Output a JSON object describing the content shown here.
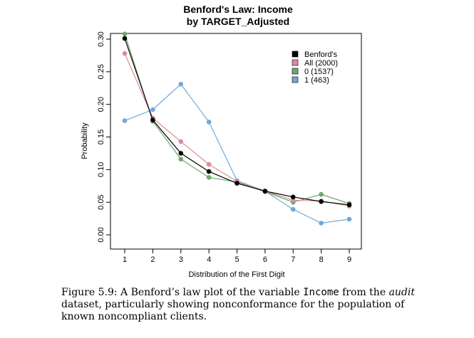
{
  "chart_data": {
    "type": "line",
    "title_line1": "Benford's Law: Income",
    "title_line2": "by TARGET_Adjusted",
    "xlabel": "Distribution of the First Digit",
    "ylabel": "Probability",
    "x": [
      1,
      2,
      3,
      4,
      5,
      6,
      7,
      8,
      9
    ],
    "xlim": [
      1,
      9
    ],
    "ylim": [
      0,
      0.3
    ],
    "yticks": [
      "0.00",
      "0.05",
      "0.10",
      "0.15",
      "0.20",
      "0.25",
      "0.30"
    ],
    "xticks": [
      "1",
      "2",
      "3",
      "4",
      "5",
      "6",
      "7",
      "8",
      "9"
    ],
    "legend_position": "top-right",
    "series": [
      {
        "name": "Benford's",
        "color": "#000000",
        "values": [
          0.301,
          0.176,
          0.125,
          0.097,
          0.079,
          0.067,
          0.058,
          0.051,
          0.046
        ]
      },
      {
        "name": "All (2000)",
        "color": "#d98c96",
        "values": [
          0.278,
          0.179,
          0.143,
          0.108,
          0.082,
          0.067,
          0.053,
          0.052,
          0.044
        ]
      },
      {
        "name": "0 (1537)",
        "color": "#6aaa6e",
        "values": [
          0.308,
          0.174,
          0.116,
          0.088,
          0.081,
          0.066,
          0.05,
          0.062,
          0.048
        ]
      },
      {
        "name": "1 (463)",
        "color": "#6fa8d8",
        "values": [
          0.175,
          0.192,
          0.231,
          0.173,
          0.083,
          0.067,
          0.039,
          0.018,
          0.024
        ]
      }
    ]
  },
  "caption": {
    "prefix": "Figure 5.9:  A Benford’s law plot of the variable ",
    "code": "Income",
    "middle": " from the ",
    "italic": "audit",
    "suffix": " dataset, particularly showing nonconformance for the population of known noncompliant clients."
  }
}
